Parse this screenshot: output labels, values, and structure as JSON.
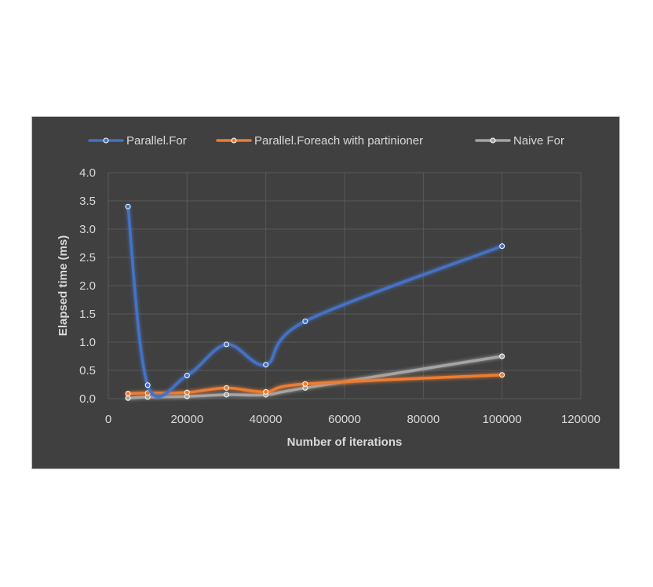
{
  "chart_data": {
    "type": "line",
    "title": "",
    "xlabel": "Number of iterations",
    "ylabel": "Elapsed time (ms)",
    "xlim": [
      0,
      120000
    ],
    "ylim": [
      0,
      4
    ],
    "x_ticks": [
      0,
      20000,
      40000,
      60000,
      80000,
      100000,
      120000
    ],
    "x_tick_labels": [
      "0",
      "20000",
      "40000",
      "60000",
      "80000",
      "100000",
      "120000"
    ],
    "y_ticks": [
      0,
      0.5,
      1,
      1.5,
      2,
      2.5,
      3,
      3.5,
      4
    ],
    "y_tick_labels": [
      "0.0",
      "0.5",
      "1.0",
      "1.5",
      "2.0",
      "2.5",
      "3.0",
      "3.5",
      "4.0"
    ],
    "grid": true,
    "legend_position": "top",
    "background": "#404040",
    "x": [
      5000,
      10000,
      20000,
      30000,
      40000,
      50000,
      100000
    ],
    "series": [
      {
        "name": "Parallel.For",
        "color": "#4472c4",
        "values": [
          3.4,
          0.24,
          0.41,
          0.96,
          0.6,
          1.37,
          2.7
        ]
      },
      {
        "name": "Parallel.Foreach with partinioner",
        "color": "#ed7d31",
        "values": [
          0.09,
          0.1,
          0.11,
          0.19,
          0.12,
          0.26,
          0.42
        ]
      },
      {
        "name": "Naive For",
        "color": "#a5a5a5",
        "values": [
          0.01,
          0.03,
          0.04,
          0.07,
          0.07,
          0.19,
          0.75
        ]
      }
    ]
  }
}
